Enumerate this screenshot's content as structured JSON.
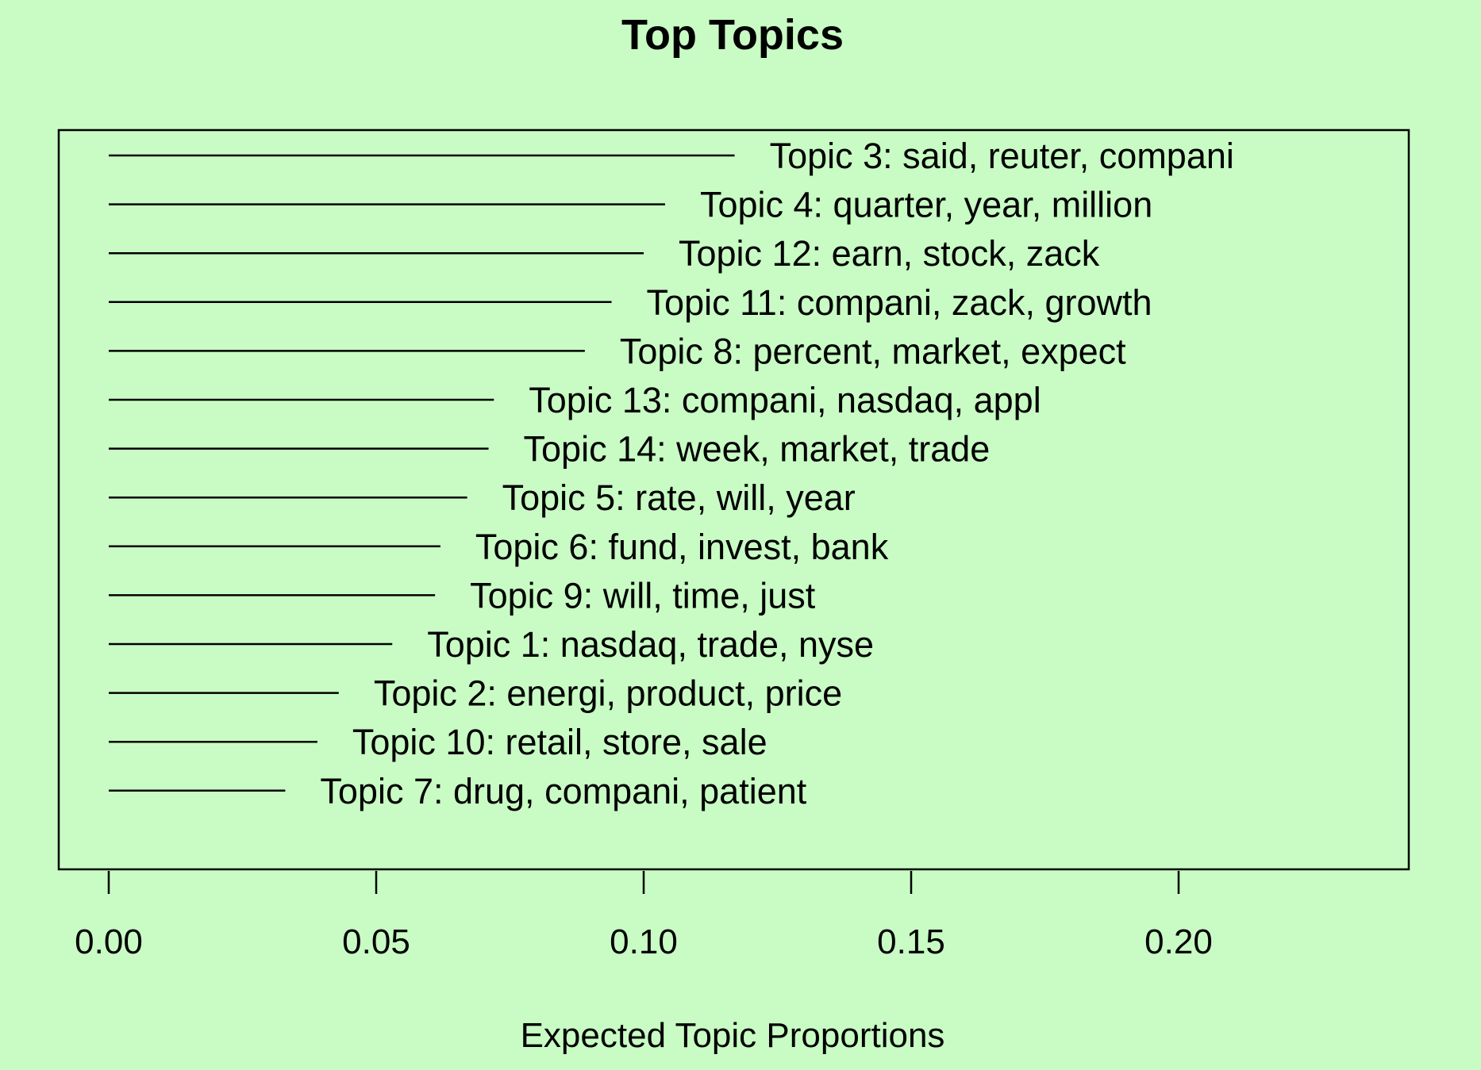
{
  "colors": {
    "background": "#c8fcc4",
    "foreground": "#000000"
  },
  "chart_data": {
    "type": "bar",
    "orientation": "horizontal",
    "title": "Top Topics",
    "xlabel": "Expected Topic Proportions",
    "ylabel": "",
    "xlim": [
      0,
      0.24
    ],
    "x_ticks": [
      0.0,
      0.05,
      0.1,
      0.15,
      0.2
    ],
    "x_tick_labels": [
      "0.00",
      "0.05",
      "0.10",
      "0.15",
      "0.20"
    ],
    "grid": false,
    "legend": "none",
    "categories": [
      "Topic 3: said, reuter, compani",
      "Topic 4: quarter, year, million",
      "Topic 12: earn, stock, zack",
      "Topic 11: compani, zack, growth",
      "Topic 8: percent, market, expect",
      "Topic 13: compani, nasdaq, appl",
      "Topic 14: week, market, trade",
      "Topic 5: rate, will, year",
      "Topic 6: fund, invest, bank",
      "Topic 9: will, time, just",
      "Topic 1: nasdaq, trade, nyse",
      "Topic 2: energi, product, price",
      "Topic 10: retail, store, sale",
      "Topic 7: drug, compani, patient"
    ],
    "values": [
      0.117,
      0.104,
      0.1,
      0.094,
      0.089,
      0.072,
      0.071,
      0.067,
      0.062,
      0.061,
      0.053,
      0.043,
      0.039,
      0.033
    ]
  }
}
